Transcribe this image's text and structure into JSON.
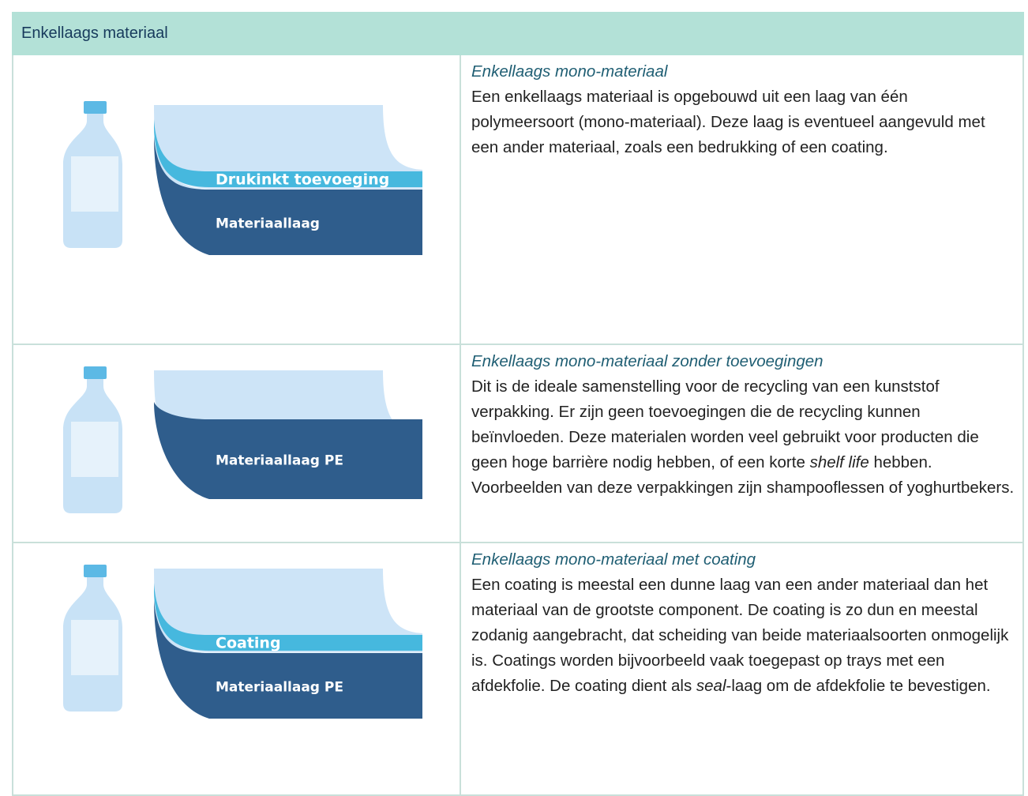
{
  "header": {
    "title": "Enkellaags materiaal"
  },
  "rows": [
    {
      "labels": {
        "band": "Drukinkt toevoeging",
        "layer": "Materiaallaag"
      },
      "title": "Enkellaags mono-materiaal",
      "body": [
        "Een enkellaags materiaal is opgebouwd uit een laag van één polymeersoort (mono-materiaal). Deze laag is eventueel aangevuld met een ander materiaal, zoals een bedrukking of een coating."
      ]
    },
    {
      "labels": {
        "layer": "Materiaallaag PE"
      },
      "title": "Enkellaags mono-materiaal zonder toevoegingen",
      "body": [
        "Dit is de ideale samenstelling voor de recycling van een kunststof verpakking. Er zijn geen toevoegingen die de recycling kunnen beïnvloeden. Deze materialen worden veel gebruikt voor producten die geen hoge barrière nodig hebben, of een korte ",
        {
          "text": "shelf life",
          "italic": true
        },
        " hebben. Voorbeelden van deze verpakkingen zijn shampooflessen of yoghurtbekers."
      ]
    },
    {
      "labels": {
        "band": "Coating",
        "layer": "Materiaallaag PE"
      },
      "title": "Enkellaags mono-materiaal met coating",
      "body": [
        "Een coating is meestal een dunne laag van een ander materiaal dan het materiaal van de grootste component. De coating is zo dun en meestal zodanig aangebracht, dat scheiding van beide materiaalsoorten onmogelijk is. Coatings worden bijvoorbeeld vaak toegepast op trays met een afdekfolie. De coating dient als ",
        {
          "text": "seal",
          "italic": true
        },
        "-laag om de afdekfolie te bevestigen."
      ]
    }
  ]
}
